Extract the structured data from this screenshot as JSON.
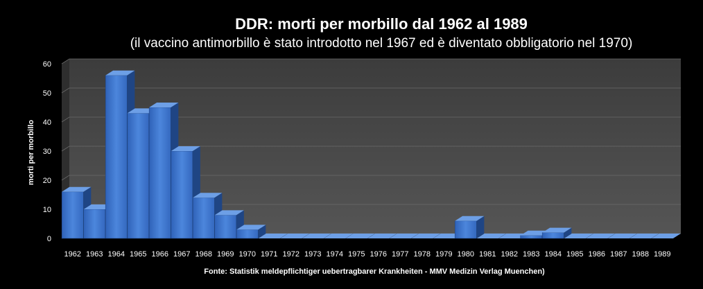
{
  "chart_data": {
    "type": "bar",
    "title": "DDR: morti per morbillo dal 1962 al 1989",
    "subtitle": "(il vaccino antimorbillo è stato introdotto nel 1967 ed è diventato obbligatorio nel 1970)",
    "ylabel": "morti per morbillo",
    "xlabel": "",
    "source": "Fonte: Statistik meldepflichtiger  uebertragbarer Krankheiten - MMV Medizin  Verlag Muenchen)",
    "ylim": [
      0,
      60
    ],
    "yticks": [
      0,
      10,
      20,
      30,
      40,
      50,
      60
    ],
    "categories": [
      "1962",
      "1963",
      "1964",
      "1965",
      "1966",
      "1967",
      "1968",
      "1969",
      "1970",
      "1971",
      "1972",
      "1973",
      "1974",
      "1975",
      "1976",
      "1977",
      "1978",
      "1979",
      "1980",
      "1981",
      "1982",
      "1983",
      "1984",
      "1985",
      "1986",
      "1987",
      "1988",
      "1989"
    ],
    "values": [
      16,
      10,
      56,
      43,
      45,
      30,
      14,
      8,
      3,
      0,
      0,
      0,
      0,
      0,
      0,
      0,
      0,
      0,
      6,
      0,
      0,
      1,
      2,
      0,
      0,
      0,
      0,
      0
    ],
    "colors": {
      "bar_front": "#3a6fc4",
      "bar_top": "#6d9fe6",
      "bar_side": "#1f4584",
      "wall": "#4a4a4a",
      "floor": "#2a2a2a"
    }
  }
}
